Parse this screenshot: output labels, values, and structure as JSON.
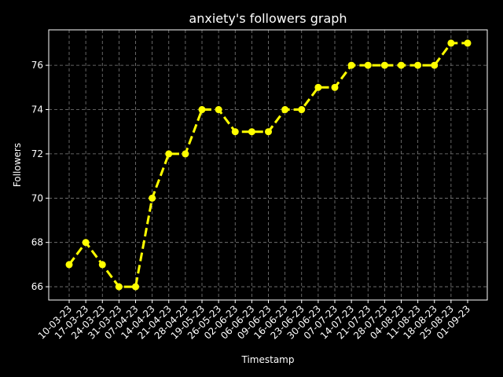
{
  "chart_data": {
    "type": "line",
    "title": "anxiety's followers graph",
    "xlabel": "Timestamp",
    "ylabel": "Followers",
    "categories": [
      "10-03-23",
      "17-03-23",
      "24-03-23",
      "31-03-23",
      "07-04-23",
      "14-04-23",
      "21-04-23",
      "28-04-23",
      "19-05-23",
      "26-05-23",
      "02-06-23",
      "06-06-23",
      "09-06-23",
      "16-06-23",
      "23-06-23",
      "30-06-23",
      "07-07-23",
      "14-07-23",
      "21-07-23",
      "28-07-23",
      "04-08-23",
      "11-08-23",
      "18-08-23",
      "25-08-23",
      "01-09-23"
    ],
    "series": [
      {
        "values": [
          67,
          68,
          67,
          66,
          66,
          70,
          72,
          72,
          74,
          74,
          73,
          73,
          73,
          74,
          74,
          75,
          75,
          76,
          76,
          76,
          76,
          76,
          76,
          77,
          77
        ]
      }
    ],
    "ylim": [
      65.4,
      77.6
    ],
    "yticks": [
      66,
      68,
      70,
      72,
      74,
      76
    ],
    "grid": true,
    "line_style": "dashed",
    "colors": {
      "background": "#000000",
      "series": "#ffff00",
      "text": "#ffffff",
      "grid": "#7f7f7f"
    }
  }
}
